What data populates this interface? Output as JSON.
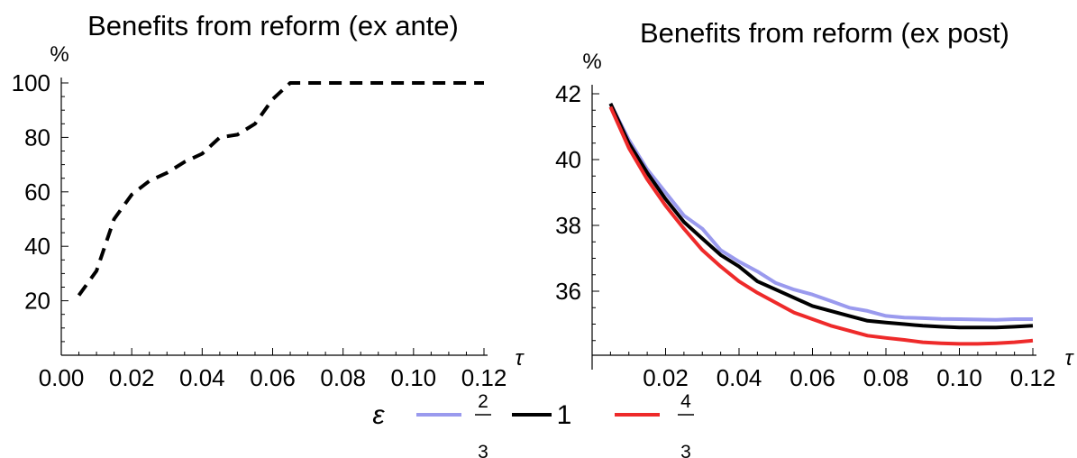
{
  "legend": {
    "symbol": "ε",
    "entries": [
      {
        "label_num": "2",
        "label_den": "3",
        "color": "#9a9aee"
      },
      {
        "label": "1",
        "color": "#000000"
      },
      {
        "label_num": "4",
        "label_den": "3",
        "color": "#ee2a2a"
      }
    ]
  },
  "chart_data": [
    {
      "type": "line",
      "title": "Benefits from reform (ex ante)",
      "ylabel": "%",
      "xlabel": "τ",
      "xlim": [
        0.0,
        0.12
      ],
      "ylim": [
        0,
        100
      ],
      "xticks": [
        "0.00",
        "0.02",
        "0.04",
        "0.06",
        "0.08",
        "0.10",
        "0.12"
      ],
      "yticks": [
        "20",
        "40",
        "60",
        "80",
        "100"
      ],
      "grid": false,
      "series": [
        {
          "style": "dashed",
          "color": "#000000",
          "x": [
            0.005,
            0.01,
            0.015,
            0.02,
            0.025,
            0.03,
            0.035,
            0.04,
            0.045,
            0.05,
            0.055,
            0.06,
            0.065,
            0.07,
            0.08,
            0.09,
            0.1,
            0.11,
            0.12
          ],
          "y": [
            22,
            31,
            50,
            59,
            64,
            67,
            71,
            74,
            80,
            81,
            85,
            94,
            100,
            100,
            100,
            100,
            100,
            100,
            100
          ]
        }
      ]
    },
    {
      "type": "line",
      "title": "Benefits from reform (ex post)",
      "ylabel": "%",
      "xlabel": "τ",
      "xlim": [
        0.0,
        0.12
      ],
      "ylim": [
        34.2,
        42.4
      ],
      "xticks": [
        "0.02",
        "0.04",
        "0.06",
        "0.08",
        "0.10",
        "0.12"
      ],
      "yticks": [
        "36",
        "38",
        "40",
        "42"
      ],
      "grid": false,
      "legend_position": "bottom-center",
      "series": [
        {
          "color": "#9a9aee",
          "x": [
            0.005,
            0.01,
            0.015,
            0.02,
            0.025,
            0.03,
            0.035,
            0.04,
            0.045,
            0.05,
            0.055,
            0.06,
            0.065,
            0.07,
            0.075,
            0.08,
            0.085,
            0.09,
            0.095,
            0.1,
            0.105,
            0.11,
            0.115,
            0.12
          ],
          "y": [
            41.7,
            40.6,
            39.7,
            39.0,
            38.3,
            37.9,
            37.25,
            36.9,
            36.6,
            36.25,
            36.05,
            35.9,
            35.7,
            35.5,
            35.4,
            35.25,
            35.2,
            35.18,
            35.16,
            35.15,
            35.14,
            35.13,
            35.15,
            35.15
          ]
        },
        {
          "color": "#000000",
          "x": [
            0.005,
            0.01,
            0.015,
            0.02,
            0.025,
            0.03,
            0.035,
            0.04,
            0.045,
            0.05,
            0.055,
            0.06,
            0.065,
            0.07,
            0.075,
            0.08,
            0.085,
            0.09,
            0.095,
            0.1,
            0.105,
            0.11,
            0.115,
            0.12
          ],
          "y": [
            41.7,
            40.5,
            39.6,
            38.8,
            38.1,
            37.6,
            37.1,
            36.75,
            36.3,
            36.05,
            35.8,
            35.55,
            35.4,
            35.25,
            35.1,
            35.05,
            35.0,
            34.95,
            34.92,
            34.9,
            34.9,
            34.9,
            34.92,
            34.95
          ]
        },
        {
          "color": "#ee2a2a",
          "x": [
            0.005,
            0.01,
            0.015,
            0.02,
            0.025,
            0.03,
            0.035,
            0.04,
            0.045,
            0.05,
            0.055,
            0.06,
            0.065,
            0.07,
            0.075,
            0.08,
            0.085,
            0.09,
            0.095,
            0.1,
            0.105,
            0.11,
            0.115,
            0.12
          ],
          "y": [
            41.6,
            40.35,
            39.4,
            38.6,
            37.9,
            37.25,
            36.75,
            36.3,
            35.95,
            35.65,
            35.35,
            35.15,
            34.95,
            34.8,
            34.65,
            34.58,
            34.52,
            34.45,
            34.42,
            34.4,
            34.4,
            34.42,
            34.45,
            34.5
          ]
        }
      ]
    }
  ]
}
